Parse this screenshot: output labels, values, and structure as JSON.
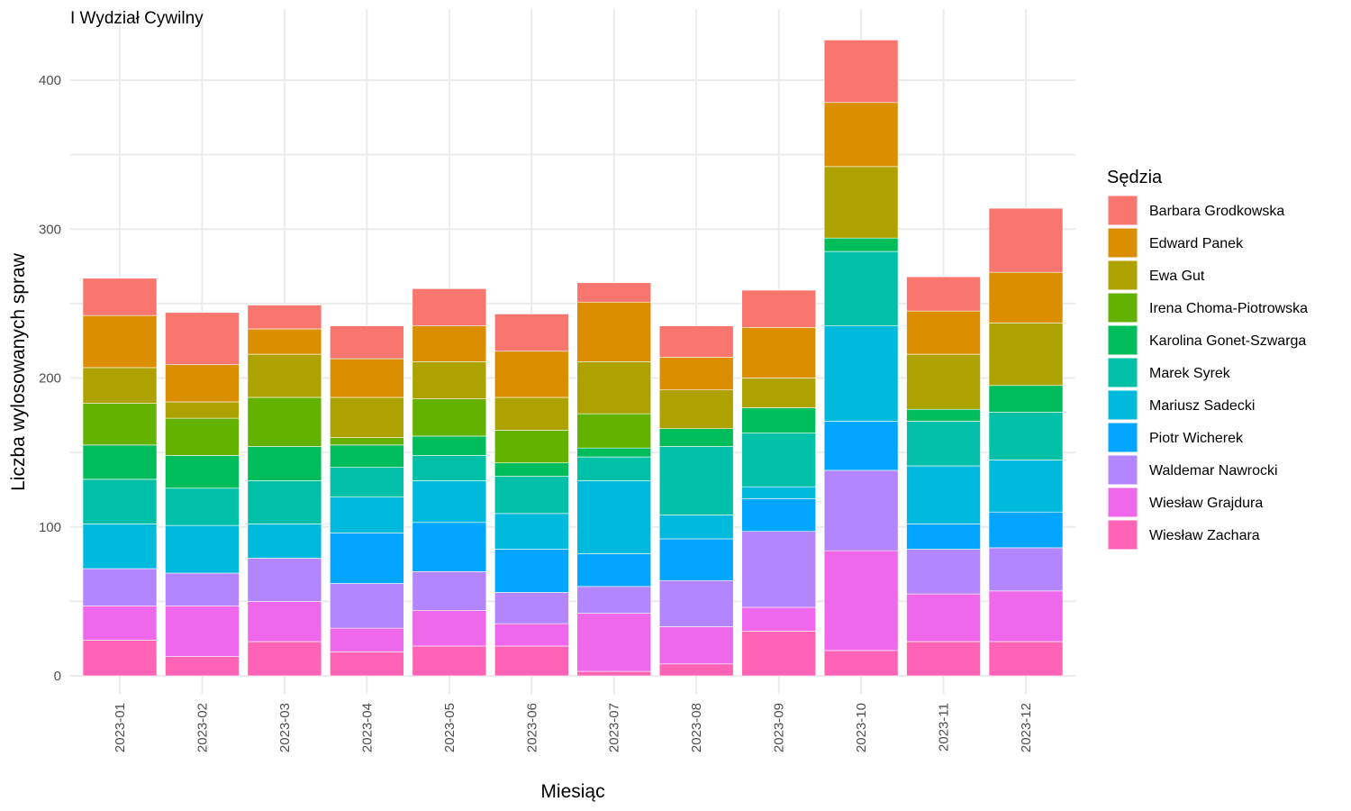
{
  "chart_data": {
    "type": "bar",
    "stacked": true,
    "title": "I Wydział Cywilny",
    "xlabel": "Miesiąc",
    "ylabel": "Liczba wylosowanych spraw",
    "ylim": [
      0,
      430
    ],
    "yticks": [
      0,
      100,
      200,
      300,
      400
    ],
    "grid": true,
    "legend_position": "right",
    "legend_title": "Sędzia",
    "categories": [
      "2023-01",
      "2023-02",
      "2023-03",
      "2023-04",
      "2023-05",
      "2023-06",
      "2023-07",
      "2023-08",
      "2023-09",
      "2023-10",
      "2023-11",
      "2023-12"
    ],
    "series": [
      {
        "name": "Barbara Grodkowska",
        "color": "#F8766D",
        "values": [
          25,
          35,
          16,
          22,
          25,
          25,
          13,
          21,
          25,
          42,
          23,
          43
        ]
      },
      {
        "name": "Edward Panek",
        "color": "#DB8E00",
        "values": [
          35,
          25,
          17,
          26,
          24,
          31,
          40,
          22,
          34,
          43,
          29,
          34
        ]
      },
      {
        "name": "Ewa Gut",
        "color": "#AEA200",
        "values": [
          24,
          11,
          29,
          27,
          25,
          22,
          35,
          26,
          20,
          48,
          37,
          42
        ]
      },
      {
        "name": "Irena Choma-Piotrowska",
        "color": "#64B200",
        "values": [
          28,
          25,
          33,
          5,
          25,
          22,
          23,
          0,
          0,
          0,
          0,
          0
        ]
      },
      {
        "name": "Karolina Gonet-Szwarga",
        "color": "#00BD5C",
        "values": [
          23,
          22,
          23,
          15,
          13,
          9,
          6,
          12,
          17,
          9,
          8,
          18
        ]
      },
      {
        "name": "Marek Syrek",
        "color": "#00C1A7",
        "values": [
          30,
          25,
          29,
          20,
          17,
          25,
          16,
          46,
          36,
          50,
          30,
          32
        ]
      },
      {
        "name": "Mariusz Sadecki",
        "color": "#00BADE",
        "values": [
          30,
          32,
          23,
          24,
          28,
          24,
          49,
          16,
          8,
          64,
          39,
          35
        ]
      },
      {
        "name": "Piotr Wicherek",
        "color": "#00A6FF",
        "values": [
          0,
          0,
          0,
          34,
          33,
          29,
          22,
          28,
          22,
          33,
          17,
          24
        ]
      },
      {
        "name": "Waldemar Nawrocki",
        "color": "#B385FF",
        "values": [
          25,
          22,
          29,
          30,
          26,
          21,
          18,
          31,
          51,
          54,
          30,
          29
        ]
      },
      {
        "name": "Wiesław Grajdura",
        "color": "#EF67EB",
        "values": [
          23,
          34,
          27,
          16,
          24,
          15,
          39,
          25,
          16,
          67,
          32,
          34
        ]
      },
      {
        "name": "Wiesław Zachara",
        "color": "#FF63B6",
        "values": [
          24,
          13,
          23,
          16,
          20,
          20,
          3,
          8,
          30,
          17,
          23,
          23
        ]
      }
    ]
  }
}
